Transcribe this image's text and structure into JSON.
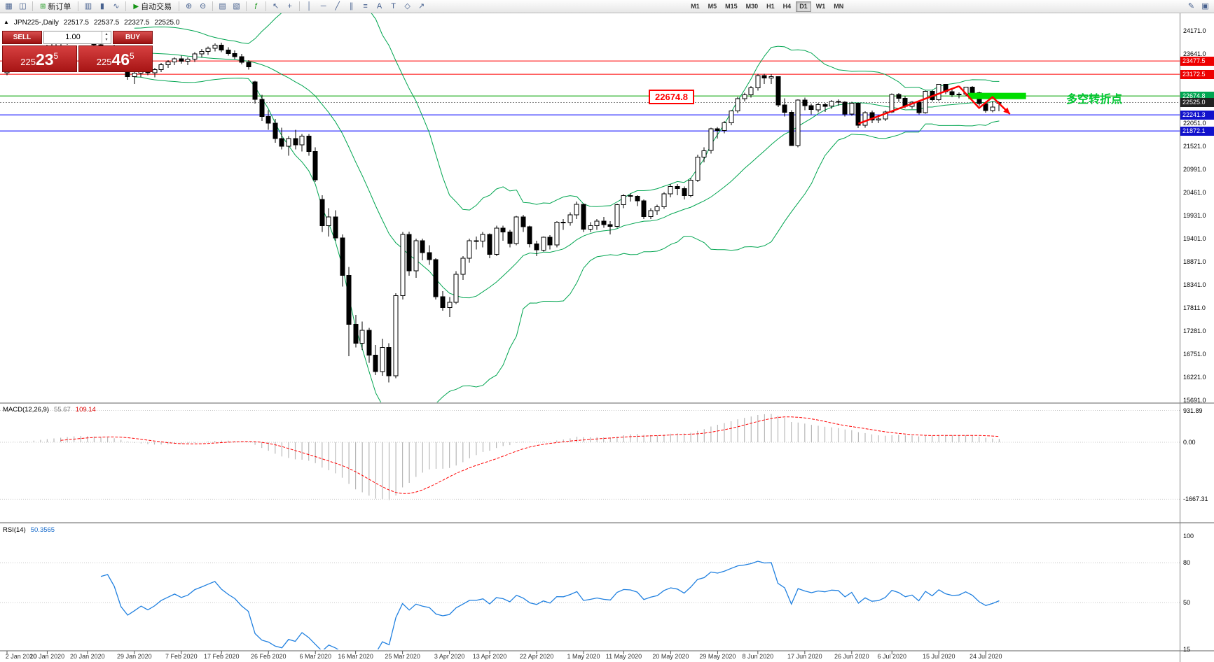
{
  "toolbar": {
    "icons": {
      "new_chart": "▦",
      "profiles": "◫",
      "new_order_plus": "⊞",
      "autotrade_play": "▶",
      "bar_chart": "▥",
      "candle_chart": "▮",
      "line_chart": "∿",
      "zoom_in": "⊕",
      "zoom_out": "⊖",
      "tile_windows": "▤",
      "cascade_windows": "▧",
      "indicators": "ƒ",
      "cursor": "↖",
      "crosshair": "+",
      "vline": "│",
      "hline": "─",
      "trendline": "╱",
      "channel": "∥",
      "fibonacci": "≡",
      "text": "A",
      "label": "T",
      "shapes": "◇",
      "arrow_tool": "↗",
      "templates": "✎",
      "fullscreen": "▣"
    },
    "new_order_label": "新订单",
    "autotrade_label": "自动交易",
    "timeframes": [
      "M1",
      "M5",
      "M15",
      "M30",
      "H1",
      "H4",
      "D1",
      "W1",
      "MN"
    ],
    "active_timeframe": "D1"
  },
  "chart_header": {
    "collapse_arrow": "▲",
    "symbol": "JPN225-,Daily",
    "open": "22517.5",
    "high": "22537.5",
    "low": "22327.5",
    "close": "22525.0"
  },
  "one_click": {
    "sell_label": "SELL",
    "buy_label": "BUY",
    "volume": "1.00",
    "spin_up": "▴",
    "spin_down": "▾",
    "sell_price": {
      "small": "225",
      "big": "23",
      "sup": "5"
    },
    "buy_price": {
      "small": "225",
      "big": "46",
      "sup": "5"
    }
  },
  "annotations": {
    "price_box": "22674.8",
    "turning_point": "多空转折点"
  },
  "colors": {
    "bull": "#ffffff",
    "bear": "#000000",
    "wick": "#000000",
    "bollinger": "#00a550",
    "resistance_red": "#ff0000",
    "support_blue": "#0000ff",
    "pivot_green": "#00a000",
    "highlight_green": "#00dd00",
    "trend_red": "#ff0000",
    "macd_hist": "#b8b8b8",
    "macd_signal": "#ff0000",
    "rsi_line": "#2080e0",
    "bid_chip": "#222222"
  },
  "price_scale": {
    "gridline_labels": [
      "24171.0",
      "23641.0",
      "23111.0",
      "22581.0",
      "22051.0",
      "21521.0",
      "20991.0",
      "20461.0",
      "19931.0",
      "19401.0",
      "18871.0",
      "18341.0",
      "17811.0",
      "17281.0",
      "16751.0",
      "16221.0",
      "15691.0"
    ],
    "special_labels": [
      {
        "text": "23477.5",
        "price": 23477.5,
        "bg": "#ee0000"
      },
      {
        "text": "23172.5",
        "price": 23172.5,
        "bg": "#ee0000"
      },
      {
        "text": "22674.8",
        "price": 22674.8,
        "bg": "#00a651"
      },
      {
        "text": "22525.0",
        "price": 22525.0,
        "bg": "#222222"
      },
      {
        "text": "22241.3",
        "price": 22241.3,
        "bg": "#1111cc"
      },
      {
        "text": "21872.1",
        "price": 21872.1,
        "bg": "#1111cc"
      }
    ]
  },
  "hlines": [
    {
      "price": 23477.5,
      "color": "#ff0000",
      "style": "solid"
    },
    {
      "price": 23172.5,
      "color": "#ff0000",
      "style": "solid"
    },
    {
      "price": 22674.8,
      "color": "#00a000",
      "style": "solid"
    },
    {
      "price": 22525.0,
      "color": "#888888",
      "style": "dotted"
    },
    {
      "price": 22241.3,
      "color": "#0000ff",
      "style": "solid"
    },
    {
      "price": 21872.1,
      "color": "#0000ff",
      "style": "solid"
    }
  ],
  "drawings": {
    "trend_line": {
      "from_index": 127,
      "from_price": 22040,
      "to_index": 142,
      "to_price": 22900
    },
    "zigzag": [
      [
        142,
        22900
      ],
      [
        145,
        22400
      ],
      [
        147,
        22650
      ],
      [
        149.6,
        22260
      ]
    ],
    "highlight_bar": {
      "price": 22674.8,
      "x_from_index": 143.4,
      "x_to_index": 152,
      "thickness": 9
    }
  },
  "indicators": {
    "macd": {
      "label": "MACD(12,26,9)",
      "main_value": "55.67",
      "signal_value": "109.14",
      "scale_labels": [
        "931.89",
        "0.00",
        "-1667.31"
      ],
      "scale_values": [
        931.89,
        0,
        -1667.31
      ]
    },
    "rsi": {
      "label": "RSI(14)",
      "value": "50.3565",
      "scale_labels": [
        {
          "text": "100",
          "value": 100
        },
        {
          "text": "80",
          "value": 80
        },
        {
          "text": "50",
          "value": 50
        },
        {
          "text": "15",
          "value": 15
        }
      ],
      "levels": [
        80,
        50
      ]
    }
  },
  "time_axis": [
    {
      "text": "2 Jan 2020",
      "index": 0
    },
    {
      "text": "10 Jan 2020",
      "index": 6
    },
    {
      "text": "20 Jan 2020",
      "index": 12
    },
    {
      "text": "29 Jan 2020",
      "index": 19
    },
    {
      "text": "7 Feb 2020",
      "index": 26
    },
    {
      "text": "17 Feb 2020",
      "index": 32
    },
    {
      "text": "26 Feb 2020",
      "index": 39
    },
    {
      "text": "6 Mar 2020",
      "index": 46
    },
    {
      "text": "16 Mar 2020",
      "index": 52
    },
    {
      "text": "25 Mar 2020",
      "index": 59
    },
    {
      "text": "3 Apr 2020",
      "index": 66
    },
    {
      "text": "13 Apr 2020",
      "index": 72
    },
    {
      "text": "22 Apr 2020",
      "index": 79
    },
    {
      "text": "1 May 2020",
      "index": 86
    },
    {
      "text": "11 May 2020",
      "index": 92
    },
    {
      "text": "20 May 2020",
      "index": 99
    },
    {
      "text": "29 May 2020",
      "index": 106
    },
    {
      "text": "8 Jun 2020",
      "index": 112
    },
    {
      "text": "17 Jun 2020",
      "index": 119
    },
    {
      "text": "26 Jun 2020",
      "index": 126
    },
    {
      "text": "6 Jul 2020",
      "index": 132
    },
    {
      "text": "15 Jul 2020",
      "index": 139
    },
    {
      "text": "24 Jul 2020",
      "index": 146
    }
  ],
  "chart_data": {
    "type": "candlestick",
    "symbol": "JPN225-",
    "timeframe": "Daily",
    "title": "JPN225-,Daily 22517.5 22537.5 22327.5 22525.0",
    "ylim": [
      15691,
      24171
    ],
    "overlays": {
      "bollinger_bands": {
        "period": 20,
        "deviation": 2,
        "color": "#00a550"
      }
    },
    "subcharts": [
      {
        "type": "macd",
        "params": [
          12,
          26,
          9
        ],
        "values_shown": [
          55.67,
          109.14
        ],
        "scale": [
          931.89,
          0,
          -1667.31
        ]
      },
      {
        "type": "rsi",
        "params": [
          14
        ],
        "value_shown": 50.3565,
        "scale": [
          100,
          80,
          50,
          15
        ]
      }
    ],
    "candles": [
      [
        23205,
        23365,
        23150,
        23320
      ],
      [
        23320,
        23420,
        23250,
        23400
      ],
      [
        23400,
        23480,
        23300,
        23450
      ],
      [
        23450,
        23560,
        23380,
        23530
      ],
      [
        23530,
        23660,
        23470,
        23640
      ],
      [
        23640,
        23760,
        23570,
        23740
      ],
      [
        23740,
        23850,
        23660,
        23820
      ],
      [
        23820,
        23910,
        23740,
        23870
      ],
      [
        23870,
        23960,
        23790,
        23920
      ],
      [
        23920,
        24040,
        23850,
        24000
      ],
      [
        24000,
        24115,
        23930,
        24080
      ],
      [
        24080,
        24110,
        23970,
        24040
      ],
      [
        24040,
        24090,
        23880,
        23920
      ],
      [
        23920,
        23980,
        23800,
        23850
      ],
      [
        23850,
        23900,
        23700,
        23750
      ],
      [
        23750,
        23830,
        23650,
        23800
      ],
      [
        23800,
        23850,
        23610,
        23660
      ],
      [
        23660,
        23700,
        23250,
        23320
      ],
      [
        23320,
        23400,
        23050,
        23120
      ],
      [
        23120,
        23250,
        22950,
        23200
      ],
      [
        23200,
        23350,
        23100,
        23290
      ],
      [
        23290,
        23360,
        23150,
        23205
      ],
      [
        23205,
        23320,
        23100,
        23280
      ],
      [
        23280,
        23430,
        23220,
        23390
      ],
      [
        23390,
        23500,
        23320,
        23460
      ],
      [
        23460,
        23560,
        23380,
        23530
      ],
      [
        23530,
        23600,
        23420,
        23470
      ],
      [
        23470,
        23560,
        23380,
        23520
      ],
      [
        23520,
        23680,
        23460,
        23640
      ],
      [
        23640,
        23750,
        23560,
        23700
      ],
      [
        23700,
        23810,
        23620,
        23770
      ],
      [
        23770,
        23880,
        23700,
        23840
      ],
      [
        23840,
        23900,
        23680,
        23730
      ],
      [
        23730,
        23790,
        23600,
        23650
      ],
      [
        23650,
        23720,
        23520,
        23580
      ],
      [
        23580,
        23640,
        23400,
        23450
      ],
      [
        23450,
        23500,
        23280,
        23340
      ],
      [
        23000,
        23020,
        22500,
        22600
      ],
      [
        22600,
        22700,
        22100,
        22200
      ],
      [
        22200,
        22350,
        21900,
        22050
      ],
      [
        22050,
        22150,
        21600,
        21700
      ],
      [
        21700,
        21950,
        21450,
        21520
      ],
      [
        21520,
        21750,
        21300,
        21700
      ],
      [
        21700,
        21900,
        21450,
        21550
      ],
      [
        21550,
        21800,
        21400,
        21750
      ],
      [
        21750,
        21800,
        21300,
        21400
      ],
      [
        21400,
        21500,
        20700,
        20750
      ],
      [
        20300,
        20400,
        19550,
        19700
      ],
      [
        19700,
        20100,
        19450,
        19900
      ],
      [
        19900,
        20050,
        19350,
        19420
      ],
      [
        19420,
        19500,
        18300,
        18560
      ],
      [
        18560,
        18750,
        16700,
        17430
      ],
      [
        17430,
        17650,
        16900,
        17000
      ],
      [
        17000,
        17500,
        16850,
        17300
      ],
      [
        17300,
        17350,
        16550,
        16730
      ],
      [
        16730,
        16960,
        16270,
        16350
      ],
      [
        16350,
        17100,
        16250,
        16900
      ],
      [
        16900,
        17000,
        16100,
        16250
      ],
      [
        16250,
        18150,
        16200,
        18090
      ],
      [
        18090,
        19550,
        18000,
        19500
      ],
      [
        19500,
        19560,
        18550,
        18660
      ],
      [
        18660,
        19400,
        18500,
        19350
      ],
      [
        19350,
        19400,
        18900,
        19080
      ],
      [
        19080,
        19250,
        18800,
        18920
      ],
      [
        18920,
        18950,
        18000,
        18065
      ],
      [
        18065,
        18200,
        17750,
        17820
      ],
      [
        17820,
        18060,
        17600,
        17940
      ],
      [
        17940,
        18650,
        17900,
        18580
      ],
      [
        18580,
        19000,
        18450,
        18950
      ],
      [
        18950,
        19400,
        18850,
        19350
      ],
      [
        19350,
        19450,
        19150,
        19345
      ],
      [
        19345,
        19550,
        19200,
        19500
      ],
      [
        19500,
        19520,
        18950,
        19040
      ],
      [
        19040,
        19700,
        19000,
        19640
      ],
      [
        19640,
        19700,
        19350,
        19550
      ],
      [
        19550,
        19600,
        19200,
        19290
      ],
      [
        19290,
        19920,
        19250,
        19900
      ],
      [
        19900,
        19950,
        19550,
        19670
      ],
      [
        19670,
        19700,
        19200,
        19280
      ],
      [
        19280,
        19350,
        19000,
        19140
      ],
      [
        19140,
        19450,
        19100,
        19430
      ],
      [
        19430,
        19480,
        19150,
        19260
      ],
      [
        19260,
        19800,
        19200,
        19780
      ],
      [
        19780,
        19850,
        19600,
        19770
      ],
      [
        19770,
        20000,
        19700,
        19950
      ],
      [
        19950,
        20250,
        19850,
        20190
      ],
      [
        20190,
        20200,
        19550,
        19620
      ],
      [
        19620,
        19780,
        19550,
        19700
      ],
      [
        19700,
        19850,
        19600,
        19800
      ],
      [
        19800,
        19900,
        19650,
        19720
      ],
      [
        19720,
        19800,
        19500,
        19680
      ],
      [
        19680,
        20200,
        19650,
        20180
      ],
      [
        20180,
        20420,
        20100,
        20390
      ],
      [
        20390,
        20440,
        20250,
        20370
      ],
      [
        20370,
        20400,
        20150,
        20270
      ],
      [
        20270,
        20300,
        19850,
        19910
      ],
      [
        19910,
        20100,
        19850,
        20040
      ],
      [
        20040,
        20180,
        19950,
        20130
      ],
      [
        20130,
        20470,
        20080,
        20430
      ],
      [
        20430,
        20650,
        20350,
        20600
      ],
      [
        20600,
        20650,
        20400,
        20550
      ],
      [
        20550,
        20600,
        20300,
        20390
      ],
      [
        20390,
        20790,
        20350,
        20740
      ],
      [
        20740,
        21330,
        20700,
        21270
      ],
      [
        21270,
        21500,
        21150,
        21420
      ],
      [
        21420,
        21950,
        21350,
        21920
      ],
      [
        21920,
        21960,
        21700,
        21880
      ],
      [
        21880,
        22100,
        21820,
        22060
      ],
      [
        22060,
        22350,
        22000,
        22330
      ],
      [
        22330,
        22650,
        22280,
        22610
      ],
      [
        22610,
        22750,
        22550,
        22700
      ],
      [
        22700,
        22900,
        22640,
        22860
      ],
      [
        22860,
        23180,
        22800,
        23140
      ],
      [
        23140,
        23185,
        22950,
        23090
      ],
      [
        23090,
        23175,
        22950,
        23120
      ],
      [
        23120,
        23130,
        22420,
        22470
      ],
      [
        22470,
        22620,
        22200,
        22300
      ],
      [
        22300,
        22350,
        21530,
        21540
      ],
      [
        21540,
        22600,
        21500,
        22580
      ],
      [
        22580,
        22640,
        22350,
        22450
      ],
      [
        22450,
        22500,
        22250,
        22360
      ],
      [
        22360,
        22520,
        22300,
        22480
      ],
      [
        22480,
        22520,
        22310,
        22440
      ],
      [
        22440,
        22580,
        22380,
        22550
      ],
      [
        22550,
        22600,
        22450,
        22530
      ],
      [
        22530,
        22560,
        22200,
        22260
      ],
      [
        22260,
        22540,
        22220,
        22510
      ],
      [
        22510,
        22520,
        21940,
        22000
      ],
      [
        22000,
        22320,
        21950,
        22290
      ],
      [
        22290,
        22340,
        22050,
        22120
      ],
      [
        22120,
        22240,
        22050,
        22150
      ],
      [
        22150,
        22340,
        22100,
        22310
      ],
      [
        22310,
        22730,
        22280,
        22710
      ],
      [
        22710,
        22740,
        22540,
        22620
      ],
      [
        22620,
        22670,
        22400,
        22440
      ],
      [
        22440,
        22560,
        22380,
        22530
      ],
      [
        22530,
        22550,
        22250,
        22290
      ],
      [
        22290,
        22800,
        22270,
        22780
      ],
      [
        22780,
        22810,
        22550,
        22590
      ],
      [
        22590,
        22950,
        22560,
        22940
      ],
      [
        22940,
        22950,
        22720,
        22770
      ],
      [
        22770,
        22830,
        22650,
        22700
      ],
      [
        22700,
        22760,
        22620,
        22720
      ],
      [
        22720,
        22890,
        22680,
        22880
      ],
      [
        22880,
        22900,
        22700,
        22750
      ],
      [
        22750,
        22770,
        22450,
        22500
      ],
      [
        22500,
        22550,
        22290,
        22340
      ],
      [
        22340,
        22560,
        22300,
        22420
      ],
      [
        22517.5,
        22537.5,
        22327.5,
        22525.0
      ]
    ]
  }
}
